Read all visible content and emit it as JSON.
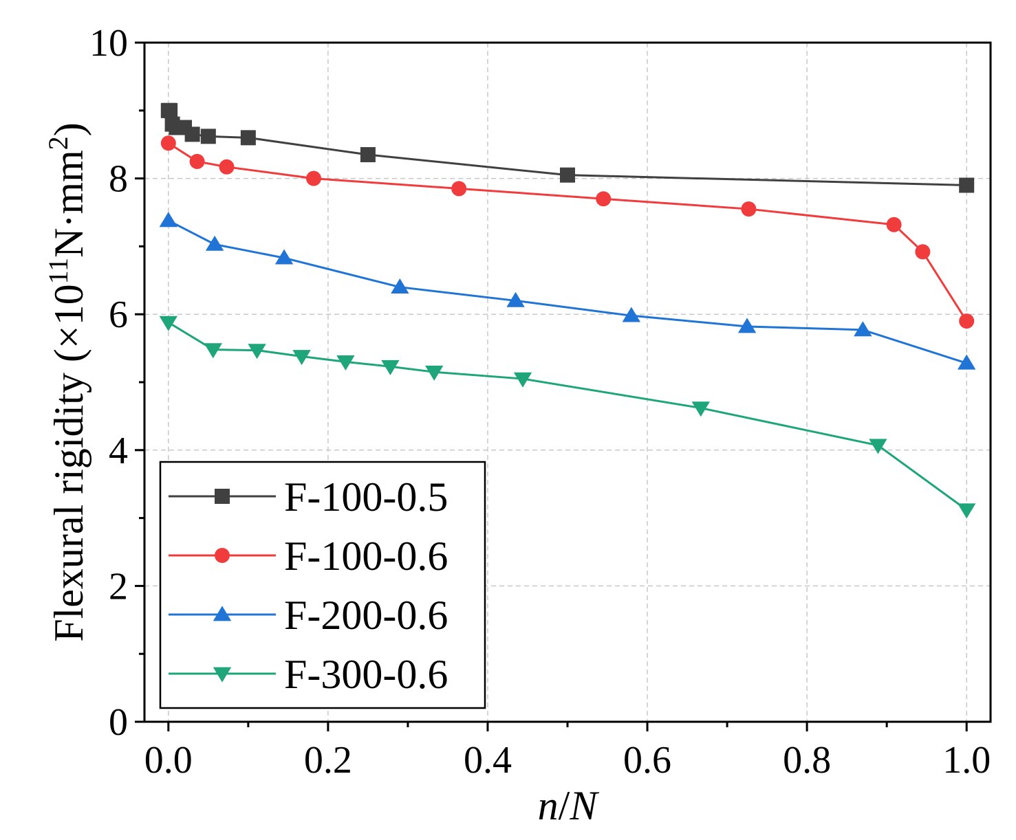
{
  "chart_data": {
    "type": "line",
    "title": "",
    "xlabel": "n/N",
    "ylabel": "Flexural rigidity (×10¹¹N·mm²)",
    "ylabel_parts": {
      "prefix": "Flexural rigidity (×10",
      "exp1": "11",
      "mid": "N·mm",
      "exp2": "2",
      "suffix": ")"
    },
    "xlabel_parts": {
      "n": "n",
      "slash": "/",
      "N": "N"
    },
    "xlim": [
      -0.03,
      1.03
    ],
    "ylim": [
      0,
      10
    ],
    "xticks": [
      0.0,
      0.2,
      0.4,
      0.6,
      0.8,
      1.0
    ],
    "xtick_labels": [
      "0.0",
      "0.2",
      "0.4",
      "0.6",
      "0.8",
      "1.0"
    ],
    "yticks": [
      0,
      2,
      4,
      6,
      8,
      10
    ],
    "ytick_labels": [
      "0",
      "2",
      "4",
      "6",
      "8",
      "10"
    ],
    "grid": true,
    "legend_position": "bottom-left",
    "series": [
      {
        "name": "F-100-0.5",
        "color": "#404040",
        "marker": "square",
        "x": [
          0.0,
          0.002,
          0.005,
          0.01,
          0.02,
          0.03,
          0.05,
          0.1,
          0.25,
          0.5,
          1.0
        ],
        "y": [
          9.0,
          9.0,
          8.8,
          8.75,
          8.75,
          8.65,
          8.62,
          8.6,
          8.35,
          8.05,
          7.9
        ]
      },
      {
        "name": "F-100-0.6",
        "color": "#f03c3c",
        "marker": "circle",
        "x": [
          0.0,
          0.036,
          0.073,
          0.182,
          0.364,
          0.545,
          0.727,
          0.909,
          0.945,
          1.0
        ],
        "y": [
          8.52,
          8.25,
          8.17,
          8.0,
          7.85,
          7.7,
          7.55,
          7.32,
          6.92,
          5.9
        ]
      },
      {
        "name": "F-200-0.6",
        "color": "#1f74d6",
        "marker": "triangle-up",
        "x": [
          0.0,
          0.058,
          0.145,
          0.29,
          0.435,
          0.58,
          0.725,
          0.87,
          1.0
        ],
        "y": [
          7.38,
          7.03,
          6.83,
          6.4,
          6.2,
          5.98,
          5.82,
          5.77,
          5.28
        ]
      },
      {
        "name": "F-300-0.6",
        "color": "#1ea57a",
        "marker": "triangle-down",
        "x": [
          0.0,
          0.056,
          0.111,
          0.167,
          0.222,
          0.278,
          0.333,
          0.444,
          0.667,
          0.889,
          1.0
        ],
        "y": [
          5.88,
          5.48,
          5.47,
          5.38,
          5.3,
          5.23,
          5.15,
          5.05,
          4.62,
          4.07,
          3.12
        ]
      }
    ]
  }
}
